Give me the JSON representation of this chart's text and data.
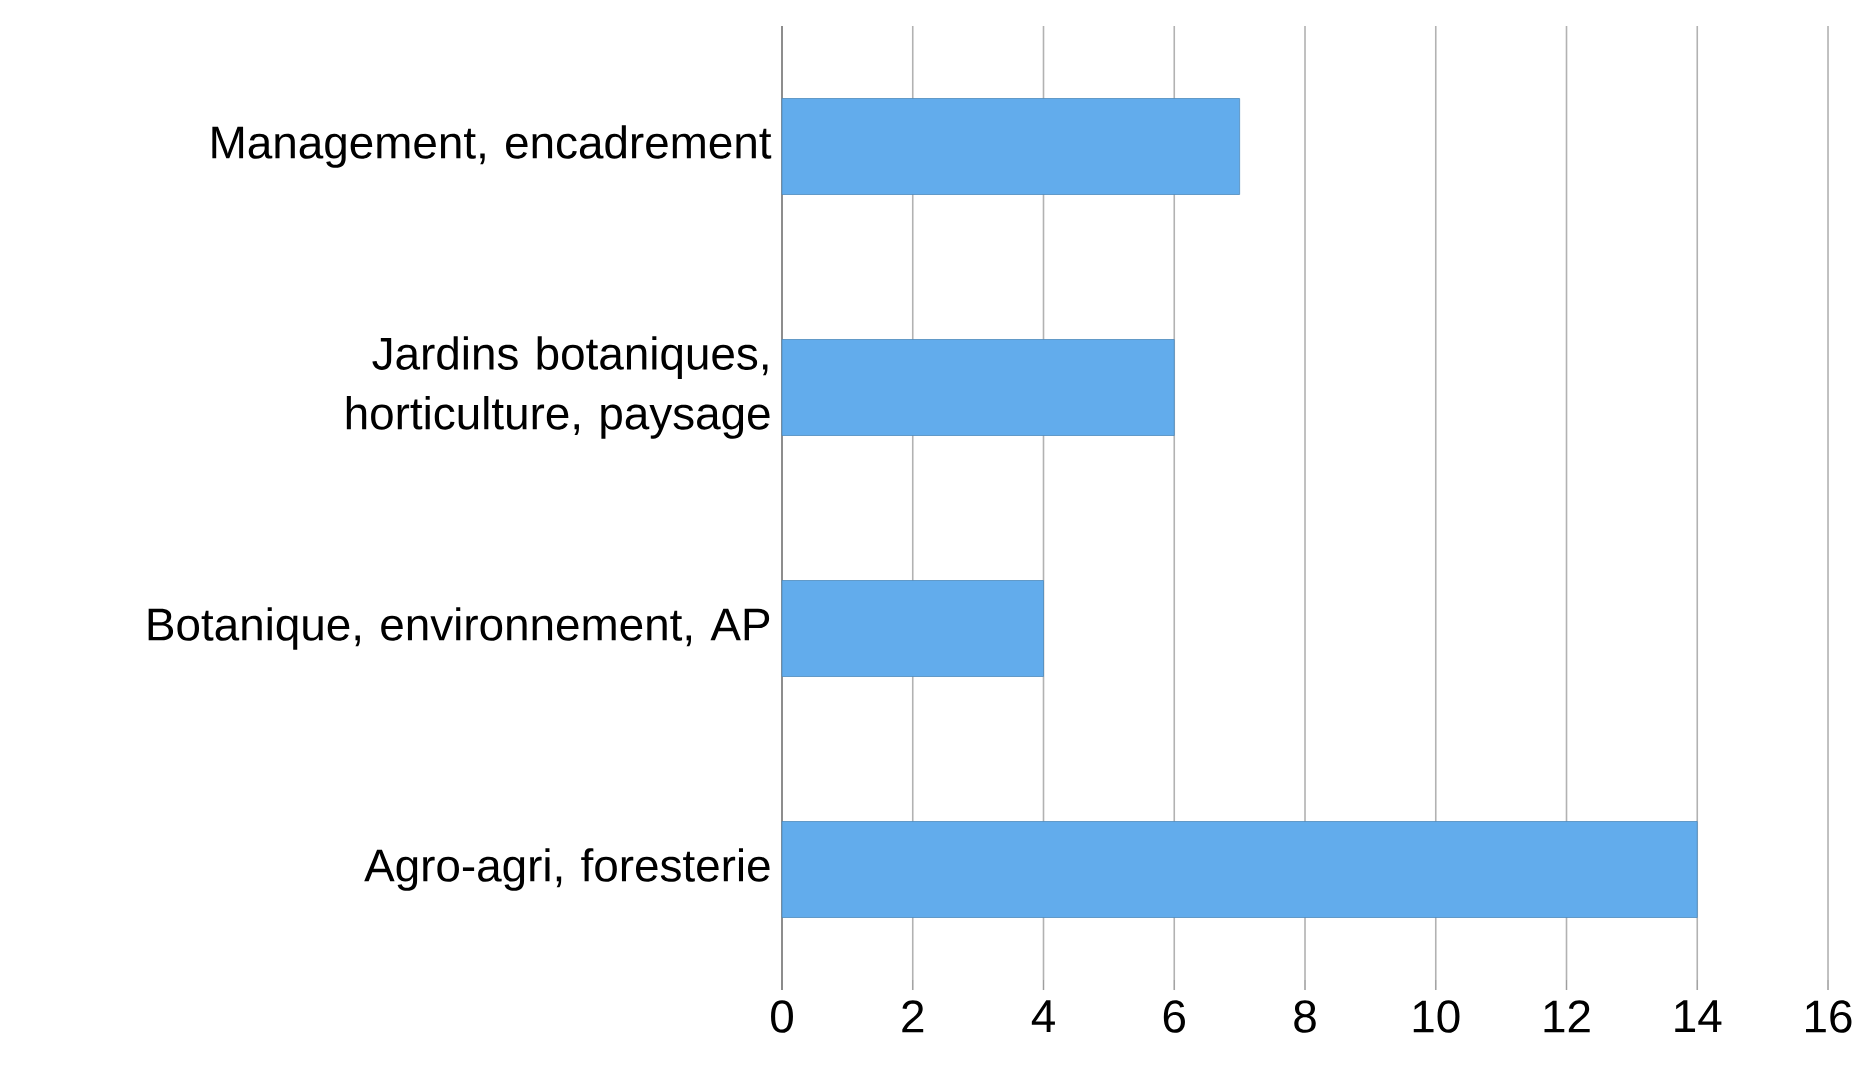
{
  "chart_data": {
    "type": "bar",
    "orientation": "horizontal",
    "categories": [
      "Management, encadrement",
      "Jardins botaniques, horticulture, paysage",
      "Botanique, environnement, AP",
      "Agro-agri, foresterie"
    ],
    "values": [
      7,
      6,
      4,
      14
    ],
    "color": "#62acec",
    "xlim": [
      0,
      16
    ],
    "xticks": [
      0,
      2,
      4,
      6,
      8,
      10,
      12,
      14,
      16
    ],
    "grid": "x"
  }
}
